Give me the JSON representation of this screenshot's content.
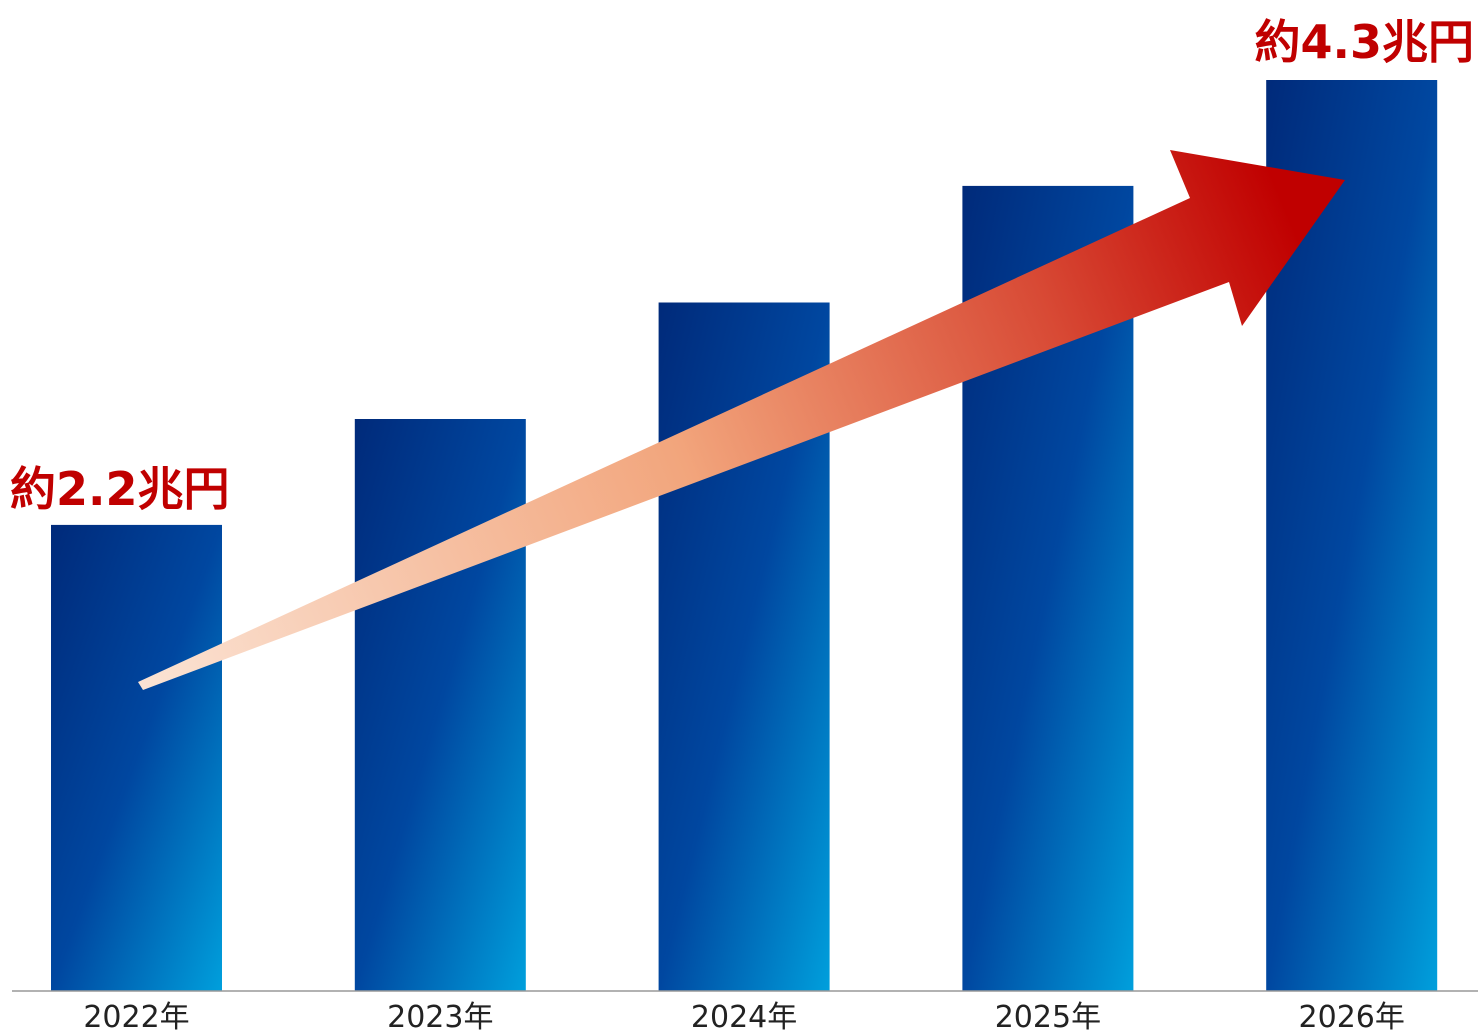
{
  "chart_data": {
    "type": "bar",
    "title": "",
    "xlabel": "",
    "ylabel": "",
    "categories": [
      "2022年",
      "2023年",
      "2024年",
      "2025年",
      "2026年"
    ],
    "values": [
      2.2,
      2.7,
      3.25,
      3.8,
      4.3
    ],
    "ylim": [
      0,
      4.3
    ],
    "grid": false,
    "legend": "none",
    "annotations": [
      {
        "category": "2022年",
        "text": "約2.2兆円"
      },
      {
        "category": "2026年",
        "text": "約4.3兆円"
      }
    ],
    "colors": {
      "bar_dark": "#002a7a",
      "bar_mid": "#0047a0",
      "bar_light": "#009fdc",
      "arrow_start": "#fbe3d4",
      "arrow_mid": "#f2a57c",
      "arrow_end": "#c00000",
      "callout_text": "#c00000",
      "axis_line": "#999999"
    },
    "trend_arrow": {
      "from": "2022年",
      "to": "2026年",
      "style": "gradient-arrow"
    }
  }
}
